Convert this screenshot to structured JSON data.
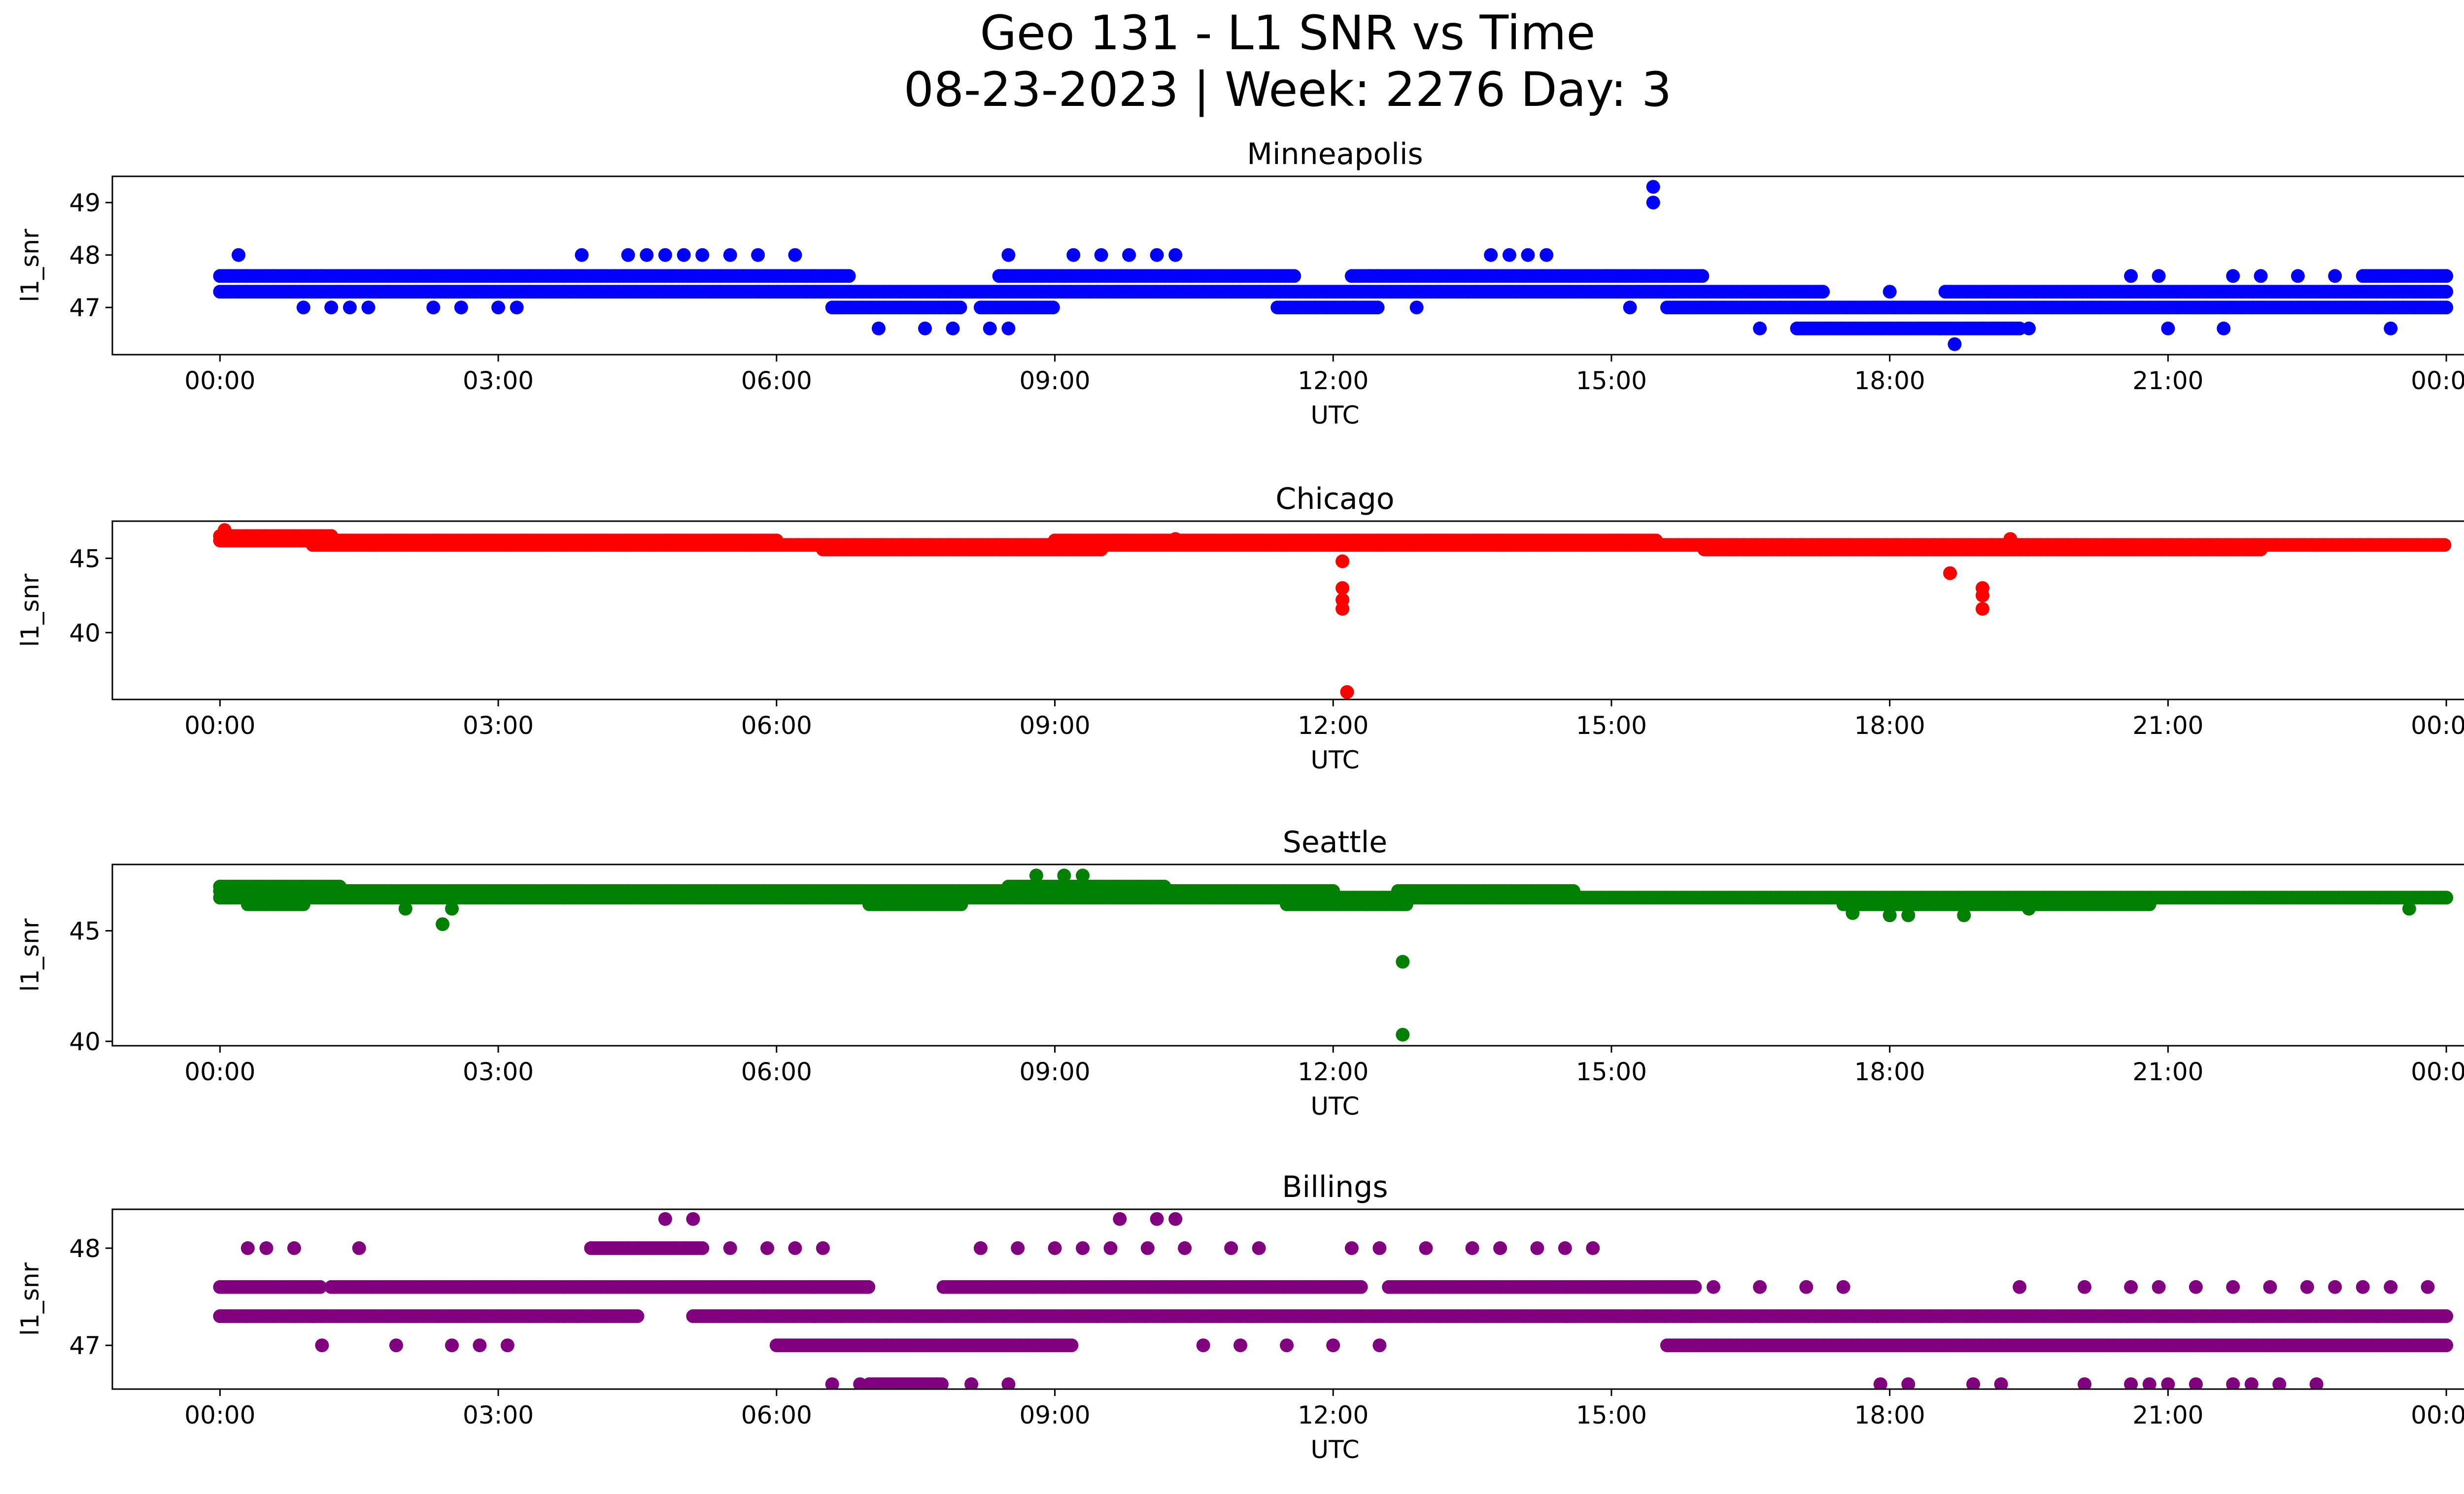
{
  "figure": {
    "title_line1": "Geo 131 - L1 SNR vs Time",
    "title_line2": "08-23-2023 | Week: 2276 Day: 3"
  },
  "chart_data": [
    {
      "type": "scatter",
      "title": "Minneapolis",
      "xlabel": "UTC",
      "ylabel": "l1_snr",
      "color": "#0000ff",
      "xlim_hours": [
        -1.16,
        25.2
      ],
      "ylim": [
        46.1,
        49.5
      ],
      "xticks": [
        "00:00",
        "03:00",
        "06:00",
        "09:00",
        "12:00",
        "15:00",
        "18:00",
        "21:00",
        "00:00"
      ],
      "yticks": [
        47,
        48,
        49
      ],
      "bands": [
        {
          "y": 47.6,
          "ranges": [
            [
              0.0,
              6.8
            ],
            [
              8.4,
              11.6
            ],
            [
              12.2,
              16.0
            ],
            [
              23.1,
              24.0
            ]
          ]
        },
        {
          "y": 47.3,
          "ranges": [
            [
              0.0,
              17.3
            ],
            [
              18.6,
              24.0
            ]
          ]
        },
        {
          "y": 47.0,
          "ranges": [
            [
              6.6,
              8.0
            ],
            [
              8.2,
              9.0
            ],
            [
              11.4,
              12.5
            ],
            [
              15.6,
              24.0
            ]
          ]
        },
        {
          "y": 46.6,
          "ranges": [
            [
              17.0,
              19.4
            ]
          ]
        }
      ],
      "points": [
        [
          0.2,
          48.0
        ],
        [
          3.9,
          48.0
        ],
        [
          4.4,
          48.0
        ],
        [
          4.6,
          48.0
        ],
        [
          4.8,
          48.0
        ],
        [
          5.0,
          48.0
        ],
        [
          5.2,
          48.0
        ],
        [
          5.5,
          48.0
        ],
        [
          5.8,
          48.0
        ],
        [
          6.2,
          48.0
        ],
        [
          8.5,
          48.0
        ],
        [
          9.2,
          48.0
        ],
        [
          9.5,
          48.0
        ],
        [
          9.8,
          48.0
        ],
        [
          10.1,
          48.0
        ],
        [
          10.3,
          48.0
        ],
        [
          13.7,
          48.0
        ],
        [
          13.9,
          48.0
        ],
        [
          14.1,
          48.0
        ],
        [
          14.3,
          48.0
        ],
        [
          0.9,
          47.0
        ],
        [
          1.2,
          47.0
        ],
        [
          1.4,
          47.0
        ],
        [
          1.6,
          47.0
        ],
        [
          2.3,
          47.0
        ],
        [
          2.6,
          47.0
        ],
        [
          3.0,
          47.0
        ],
        [
          3.2,
          47.0
        ],
        [
          7.1,
          46.6
        ],
        [
          7.6,
          46.6
        ],
        [
          7.9,
          46.6
        ],
        [
          8.3,
          46.6
        ],
        [
          8.5,
          46.6
        ],
        [
          12.9,
          47.0
        ],
        [
          15.2,
          47.0
        ],
        [
          15.45,
          49.3
        ],
        [
          15.45,
          49.0
        ],
        [
          16.6,
          46.6
        ],
        [
          18.0,
          47.3
        ],
        [
          18.7,
          46.3
        ],
        [
          19.5,
          46.6
        ],
        [
          20.6,
          47.6
        ],
        [
          20.9,
          47.6
        ],
        [
          21.0,
          46.6
        ],
        [
          21.6,
          46.6
        ],
        [
          21.7,
          47.6
        ],
        [
          22.0,
          47.6
        ],
        [
          22.4,
          47.6
        ],
        [
          22.8,
          47.6
        ],
        [
          23.4,
          46.6
        ]
      ]
    },
    {
      "type": "scatter",
      "title": "Chicago",
      "xlabel": "UTC",
      "ylabel": "l1_snr",
      "color": "#ff0000",
      "xlim_hours": [
        -1.16,
        25.2
      ],
      "ylim": [
        35.5,
        47.5
      ],
      "xticks": [
        "00:00",
        "03:00",
        "06:00",
        "09:00",
        "12:00",
        "15:00",
        "18:00",
        "21:00",
        "00:00"
      ],
      "yticks": [
        40,
        45
      ],
      "bands": [
        {
          "y": 46.5,
          "ranges": [
            [
              0.0,
              1.2
            ]
          ]
        },
        {
          "y": 46.2,
          "ranges": [
            [
              0.0,
              6.0
            ],
            [
              9.0,
              15.5
            ]
          ]
        },
        {
          "y": 45.9,
          "ranges": [
            [
              1.0,
              24.0
            ]
          ]
        },
        {
          "y": 45.6,
          "ranges": [
            [
              6.5,
              9.5
            ],
            [
              16.0,
              22.0
            ]
          ]
        }
      ],
      "points": [
        [
          0.05,
          46.9
        ],
        [
          12.1,
          44.8
        ],
        [
          12.1,
          43.0
        ],
        [
          12.1,
          42.2
        ],
        [
          12.1,
          41.6
        ],
        [
          12.15,
          36.0
        ],
        [
          18.65,
          44.0
        ],
        [
          19.0,
          43.0
        ],
        [
          19.0,
          42.5
        ],
        [
          19.0,
          41.6
        ],
        [
          19.3,
          46.3
        ],
        [
          10.3,
          46.3
        ]
      ]
    },
    {
      "type": "scatter",
      "title": "Seattle",
      "xlabel": "UTC",
      "ylabel": "l1_snr",
      "color": "#008000",
      "xlim_hours": [
        -1.16,
        25.2
      ],
      "ylim": [
        39.8,
        48.0
      ],
      "xticks": [
        "00:00",
        "03:00",
        "06:00",
        "09:00",
        "12:00",
        "15:00",
        "18:00",
        "21:00",
        "00:00"
      ],
      "yticks": [
        40,
        45
      ],
      "bands": [
        {
          "y": 47.0,
          "ranges": [
            [
              0.0,
              1.3
            ],
            [
              8.5,
              10.2
            ]
          ]
        },
        {
          "y": 46.8,
          "ranges": [
            [
              0.0,
              12.0
            ],
            [
              12.7,
              14.6
            ]
          ]
        },
        {
          "y": 46.5,
          "ranges": [
            [
              0.0,
              24.0
            ]
          ]
        },
        {
          "y": 46.2,
          "ranges": [
            [
              0.3,
              0.9
            ],
            [
              7.0,
              8.0
            ],
            [
              11.5,
              12.8
            ],
            [
              17.5,
              20.8
            ]
          ]
        }
      ],
      "points": [
        [
          2.4,
          45.3
        ],
        [
          2.0,
          46.0
        ],
        [
          2.5,
          46.0
        ],
        [
          8.8,
          47.5
        ],
        [
          9.1,
          47.5
        ],
        [
          9.3,
          47.5
        ],
        [
          12.75,
          43.6
        ],
        [
          12.75,
          40.3
        ],
        [
          17.6,
          45.8
        ],
        [
          18.0,
          45.7
        ],
        [
          18.2,
          45.7
        ],
        [
          18.8,
          45.7
        ],
        [
          19.5,
          46.0
        ],
        [
          23.6,
          46.0
        ]
      ]
    },
    {
      "type": "scatter",
      "title": "Billings",
      "xlabel": "UTC",
      "ylabel": "l1_snr",
      "color": "#800080",
      "xlim_hours": [
        -1.16,
        25.2
      ],
      "ylim": [
        46.55,
        48.4
      ],
      "xticks": [
        "00:00",
        "03:00",
        "06:00",
        "09:00",
        "12:00",
        "15:00",
        "18:00",
        "21:00",
        "00:00"
      ],
      "yticks": [
        47,
        48
      ],
      "bands": [
        {
          "y": 48.0,
          "ranges": [
            [
              4.0,
              5.2
            ]
          ]
        },
        {
          "y": 47.6,
          "ranges": [
            [
              0.0,
              1.1
            ],
            [
              1.2,
              7.0
            ],
            [
              7.8,
              12.3
            ],
            [
              12.6,
              15.9
            ]
          ]
        },
        {
          "y": 47.3,
          "ranges": [
            [
              0.0,
              4.5
            ],
            [
              5.1,
              24.0
            ]
          ]
        },
        {
          "y": 47.0,
          "ranges": [
            [
              6.0,
              9.2
            ],
            [
              15.6,
              24.0
            ]
          ]
        },
        {
          "y": 46.6,
          "ranges": [
            [
              7.0,
              7.8
            ]
          ]
        }
      ],
      "points": [
        [
          0.3,
          48.0
        ],
        [
          0.5,
          48.0
        ],
        [
          0.8,
          48.0
        ],
        [
          1.5,
          48.0
        ],
        [
          5.5,
          48.0
        ],
        [
          5.9,
          48.0
        ],
        [
          6.2,
          48.0
        ],
        [
          6.5,
          48.0
        ],
        [
          8.2,
          48.0
        ],
        [
          8.6,
          48.0
        ],
        [
          9.0,
          48.0
        ],
        [
          9.3,
          48.0
        ],
        [
          9.6,
          48.0
        ],
        [
          10.0,
          48.0
        ],
        [
          10.4,
          48.0
        ],
        [
          10.9,
          48.0
        ],
        [
          11.2,
          48.0
        ],
        [
          12.2,
          48.0
        ],
        [
          12.5,
          48.0
        ],
        [
          13.0,
          48.0
        ],
        [
          13.5,
          48.0
        ],
        [
          13.8,
          48.0
        ],
        [
          14.2,
          48.0
        ],
        [
          14.5,
          48.0
        ],
        [
          14.8,
          48.0
        ],
        [
          4.8,
          48.3
        ],
        [
          5.1,
          48.3
        ],
        [
          9.7,
          48.3
        ],
        [
          10.1,
          48.3
        ],
        [
          10.3,
          48.3
        ],
        [
          1.1,
          47.0
        ],
        [
          1.9,
          47.0
        ],
        [
          2.5,
          47.0
        ],
        [
          2.8,
          47.0
        ],
        [
          3.1,
          47.0
        ],
        [
          10.6,
          47.0
        ],
        [
          11.0,
          47.0
        ],
        [
          11.5,
          47.0
        ],
        [
          12.0,
          47.0
        ],
        [
          12.5,
          47.0
        ],
        [
          6.6,
          46.6
        ],
        [
          6.9,
          46.6
        ],
        [
          8.1,
          46.6
        ],
        [
          8.5,
          46.6
        ],
        [
          17.9,
          46.6
        ],
        [
          18.2,
          46.6
        ],
        [
          18.9,
          46.6
        ],
        [
          19.2,
          46.6
        ],
        [
          20.1,
          46.6
        ],
        [
          20.6,
          46.6
        ],
        [
          20.8,
          46.6
        ],
        [
          21.0,
          46.6
        ],
        [
          21.3,
          46.6
        ],
        [
          21.7,
          46.6
        ],
        [
          21.9,
          46.6
        ],
        [
          22.2,
          46.6
        ],
        [
          22.6,
          46.6
        ],
        [
          19.4,
          47.6
        ],
        [
          20.1,
          47.6
        ],
        [
          20.6,
          47.6
        ],
        [
          20.9,
          47.6
        ],
        [
          21.3,
          47.6
        ],
        [
          21.7,
          47.6
        ],
        [
          22.1,
          47.6
        ],
        [
          22.5,
          47.6
        ],
        [
          22.8,
          47.6
        ],
        [
          23.1,
          47.6
        ],
        [
          23.4,
          47.6
        ],
        [
          23.8,
          47.6
        ],
        [
          16.1,
          47.6
        ],
        [
          16.6,
          47.6
        ],
        [
          17.1,
          47.6
        ],
        [
          17.5,
          47.6
        ]
      ]
    }
  ]
}
